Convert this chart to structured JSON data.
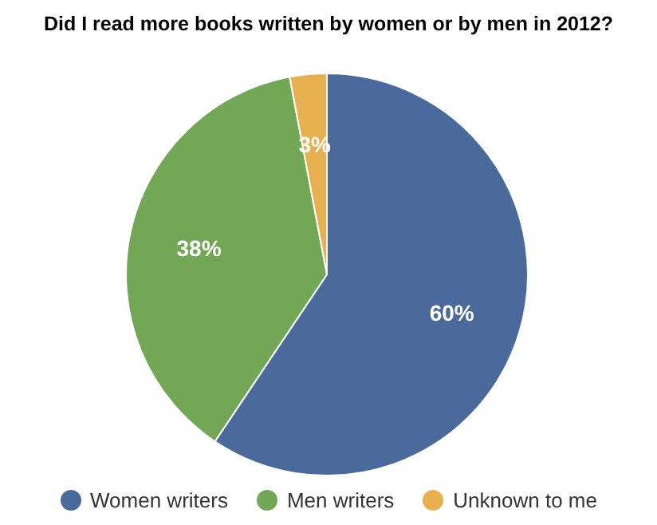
{
  "chart_data": {
    "type": "pie",
    "title": "Did I read more books written by women or by men in 2012?",
    "categories": [
      "Women writers",
      "Men writers",
      "Unknown to me"
    ],
    "values": [
      60,
      38,
      3
    ],
    "colors": [
      "#4a6a9c",
      "#72a855",
      "#e8b04e"
    ],
    "value_labels": [
      "60%",
      "38%",
      "3%"
    ],
    "legend": "bottom"
  }
}
